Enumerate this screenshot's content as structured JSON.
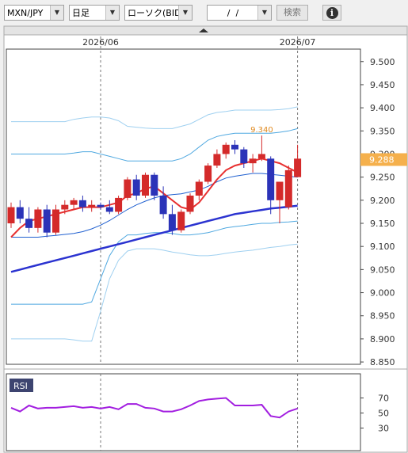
{
  "toolbar": {
    "pair": "MXN/JPY",
    "period": "日足",
    "chart_type": "ローソク(BID)",
    "date": "/  /",
    "search": "検索",
    "info": "i"
  },
  "chart_data": [
    {
      "type": "candlestick",
      "categories": [
        null,
        null,
        null,
        null,
        null,
        null,
        null,
        null,
        null,
        null,
        "2026/06",
        null,
        null,
        null,
        null,
        null,
        null,
        null,
        null,
        null,
        null,
        null,
        null,
        null,
        null,
        null,
        null,
        null,
        null,
        null,
        null,
        null,
        "2026/07"
      ],
      "open": [
        9.15,
        9.185,
        9.16,
        9.14,
        9.18,
        9.13,
        9.18,
        9.19,
        9.2,
        9.185,
        9.19,
        9.185,
        9.175,
        9.205,
        9.245,
        9.21,
        9.255,
        9.21,
        9.17,
        9.135,
        9.175,
        9.21,
        9.24,
        9.275,
        9.3,
        9.32,
        9.31,
        9.28,
        9.29,
        9.29,
        9.2,
        9.185,
        9.25
      ],
      "high": [
        9.195,
        9.2,
        9.185,
        9.185,
        9.19,
        9.19,
        9.2,
        9.205,
        9.21,
        9.2,
        9.195,
        9.2,
        9.21,
        9.25,
        9.255,
        9.26,
        9.26,
        9.23,
        9.19,
        9.18,
        9.215,
        9.245,
        9.28,
        9.31,
        9.325,
        9.33,
        9.315,
        9.3,
        9.34,
        9.295,
        9.24,
        9.275,
        9.32
      ],
      "low": [
        9.14,
        9.15,
        9.13,
        9.13,
        9.12,
        9.125,
        9.17,
        9.18,
        9.175,
        9.175,
        9.18,
        9.17,
        9.17,
        9.2,
        9.2,
        9.205,
        9.2,
        9.16,
        9.125,
        9.13,
        9.17,
        9.2,
        9.235,
        9.27,
        9.29,
        9.3,
        9.27,
        9.26,
        9.285,
        9.17,
        9.15,
        9.18,
        9.25
      ],
      "close": [
        9.185,
        9.16,
        9.14,
        9.18,
        9.13,
        9.18,
        9.19,
        9.2,
        9.185,
        9.19,
        9.185,
        9.175,
        9.205,
        9.245,
        9.21,
        9.255,
        9.21,
        9.17,
        9.135,
        9.175,
        9.21,
        9.24,
        9.275,
        9.3,
        9.32,
        9.31,
        9.28,
        9.29,
        9.3,
        9.2,
        9.24,
        9.265,
        9.29
      ],
      "high_value_labels": [
        null,
        null,
        null,
        null,
        null,
        null,
        null,
        null,
        null,
        null,
        null,
        null,
        null,
        null,
        null,
        null,
        null,
        null,
        null,
        null,
        null,
        null,
        null,
        null,
        null,
        null,
        null,
        null,
        "9.340",
        null,
        null,
        null,
        null
      ],
      "up_color": "#d42a2a",
      "down_color": "#2b33b8",
      "overlays": [
        {
          "color": "#9fd0f0",
          "values": [
            9.37,
            9.37,
            9.37,
            9.37,
            9.37,
            9.37,
            9.37,
            9.375,
            9.378,
            9.38,
            9.38,
            9.378,
            9.372,
            9.36,
            9.358,
            9.356,
            9.355,
            9.355,
            9.355,
            9.36,
            9.365,
            9.375,
            9.385,
            9.39,
            9.392,
            9.395,
            9.395,
            9.395,
            9.395,
            9.395,
            9.396,
            9.398,
            9.402
          ]
        },
        {
          "color": "#4fa8e0",
          "values": [
            9.3,
            9.3,
            9.3,
            9.3,
            9.3,
            9.3,
            9.3,
            9.302,
            9.305,
            9.305,
            9.3,
            9.295,
            9.29,
            9.285,
            9.285,
            9.285,
            9.285,
            9.285,
            9.285,
            9.29,
            9.3,
            9.315,
            9.33,
            9.338,
            9.342,
            9.345,
            9.345,
            9.345,
            9.345,
            9.345,
            9.347,
            9.35,
            9.355
          ]
        },
        {
          "color": "#2060d0",
          "values": [
            9.12,
            9.12,
            9.12,
            9.12,
            9.122,
            9.124,
            9.126,
            9.128,
            9.132,
            9.138,
            9.146,
            9.156,
            9.168,
            9.18,
            9.19,
            9.198,
            9.205,
            9.21,
            9.212,
            9.214,
            9.218,
            9.222,
            9.23,
            9.24,
            9.248,
            9.252,
            9.255,
            9.258,
            9.258,
            9.256,
            9.254,
            9.252,
            9.25
          ]
        },
        {
          "color": "#4fa8e0",
          "values": [
            8.975,
            8.975,
            8.975,
            8.975,
            8.975,
            8.975,
            8.975,
            8.975,
            8.975,
            8.98,
            9.03,
            9.08,
            9.11,
            9.125,
            9.125,
            9.128,
            9.13,
            9.13,
            9.128,
            9.125,
            9.125,
            9.127,
            9.13,
            9.135,
            9.14,
            9.143,
            9.145,
            9.148,
            9.15,
            9.15,
            9.152,
            9.153,
            9.155
          ]
        },
        {
          "color": "#9fd0f0",
          "values": [
            8.9,
            8.9,
            8.9,
            8.9,
            8.9,
            8.9,
            8.9,
            8.898,
            8.895,
            8.895,
            8.96,
            9.03,
            9.07,
            9.09,
            9.095,
            9.095,
            9.095,
            9.092,
            9.088,
            9.085,
            9.082,
            9.08,
            9.08,
            9.082,
            9.085,
            9.088,
            9.09,
            9.092,
            9.095,
            9.098,
            9.1,
            9.103,
            9.105
          ]
        },
        {
          "color": "#2b33d0",
          "values": [
            9.045,
            9.05,
            9.055,
            9.06,
            9.065,
            9.07,
            9.075,
            9.08,
            9.085,
            9.09,
            9.095,
            9.1,
            9.105,
            9.11,
            9.115,
            9.12,
            9.125,
            9.13,
            9.135,
            9.14,
            9.145,
            9.15,
            9.155,
            9.16,
            9.165,
            9.17,
            9.173,
            9.176,
            9.179,
            9.182,
            9.184,
            9.186,
            9.188
          ]
        },
        {
          "color": "#e83030",
          "values": [
            9.12,
            9.14,
            9.155,
            9.16,
            9.165,
            9.17,
            9.175,
            9.18,
            9.185,
            9.185,
            9.185,
            9.19,
            9.195,
            9.21,
            9.215,
            9.225,
            9.23,
            9.215,
            9.2,
            9.185,
            9.18,
            9.195,
            9.22,
            9.245,
            9.265,
            9.275,
            9.28,
            9.285,
            9.29,
            9.285,
            9.28,
            9.27,
            9.26
          ]
        }
      ],
      "ylim": [
        8.845,
        9.527
      ],
      "yticks": [
        {
          "value": 9.5,
          "label": "9.500"
        },
        {
          "value": 9.45,
          "label": "9.450"
        },
        {
          "value": 9.4,
          "label": "9.400"
        },
        {
          "value": 9.35,
          "label": "9.350"
        },
        {
          "value": 9.3,
          "label": "9.300"
        },
        {
          "value": 9.25,
          "label": "9.250"
        },
        {
          "value": 9.2,
          "label": "9.200"
        },
        {
          "value": 9.15,
          "label": "9.150"
        },
        {
          "value": 9.1,
          "label": "9.100"
        },
        {
          "value": 9.05,
          "label": "9.050"
        },
        {
          "value": 9.0,
          "label": "9.000"
        },
        {
          "value": 8.95,
          "label": "8.950"
        },
        {
          "value": 8.9,
          "label": "8.900"
        },
        {
          "value": 8.85,
          "label": "8.850"
        }
      ],
      "last_price": {
        "value": 9.288,
        "label": "9.288",
        "color": "#f5b04c"
      },
      "xgrid": true
    },
    {
      "type": "line",
      "series": [
        {
          "name": "RSI",
          "color": "#a21ee0",
          "values": [
            57,
            52,
            60,
            56,
            57,
            57,
            58,
            59,
            57,
            58,
            56,
            58,
            55,
            62,
            62,
            57,
            56,
            52,
            52,
            55,
            60,
            66,
            68,
            69,
            70,
            60,
            60,
            60,
            61,
            46,
            44,
            52,
            56
          ]
        }
      ],
      "ylim": [
        0,
        100
      ],
      "yticks": [
        70,
        50,
        30
      ]
    }
  ]
}
